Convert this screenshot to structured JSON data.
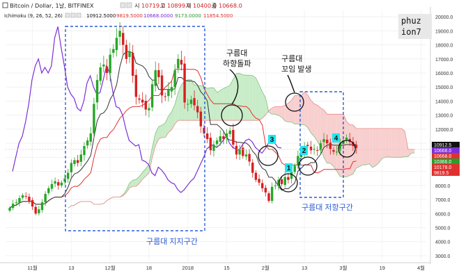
{
  "header": {
    "line1_title": "Bitcoin / Dollar, 1날, BITFINEX",
    "line1_prefix_o": "시",
    "line1_o": "10719.0",
    "line1_prefix_h": "고",
    "line1_h": "10899.0",
    "line1_prefix_l": "저",
    "line1_l": "10400.0",
    "line1_prefix_c": "종",
    "line1_c": "10668.0",
    "line2_name": "Ichimoku (9, 26, 52, 26)",
    "line2_values": [
      "10912.5000",
      "9819.5000",
      "10668.0000",
      "9173.0000",
      "11854.5000"
    ],
    "line2_colors": [
      "#111111",
      "#e03030",
      "#7b2fd6",
      "#2a9d2a",
      "#e03030"
    ]
  },
  "watermark": {
    "line1": "phuz",
    "line2": "ion7"
  },
  "annotations": {
    "cloud_break": [
      "구름대",
      "하향돌파"
    ],
    "cloud_twist": [
      "구름대",
      "꼬임  발생"
    ],
    "support_zone": "구름대  지지구간",
    "resistance_zone": "구름대  저항구간",
    "markers": [
      "1",
      "2",
      "3",
      "4"
    ]
  },
  "price_tags": [
    {
      "value": "10912.5",
      "bg": "#111111"
    },
    {
      "value": "10668.0",
      "bg": "#7b2fd6"
    },
    {
      "value": "10668.0",
      "bg": "#e03030"
    },
    {
      "value": "10366.0",
      "bg": "#2a9d2a"
    },
    {
      "value": "10178.0",
      "bg": "#e03030"
    },
    {
      "value": "9819.5",
      "bg": "#e03030"
    }
  ],
  "colors": {
    "up": "#26a626",
    "down": "#d62020",
    "tenkan": "#333333",
    "kijun": "#e03030",
    "chikou": "#7b2fd6",
    "kumo_bull": "#c8ecc8",
    "kumo_bear": "#f8cfcf",
    "annotation_blue": "#2a5ad6",
    "marker_cyan": "#22e5f0"
  },
  "chart_data": {
    "type": "candlestick",
    "title": "Bitcoin / Dollar, 1날, BITFINEX",
    "x_labels": [
      "11월",
      "13",
      "12월",
      "18",
      "2018",
      "15",
      "2월",
      "13",
      "3월",
      "19",
      "4월"
    ],
    "y_ticks": [
      "20000.0",
      "19000.0",
      "18000.0",
      "17000.0",
      "16000.0",
      "15000.0",
      "14000.0",
      "13000.0",
      "12000.0",
      "11000.0",
      "10000.0",
      "9000.0",
      "8000.0",
      "7000.0",
      "6000.0",
      "5000.0",
      "4000.0",
      "3000.0"
    ],
    "ylim": [
      2800,
      20500
    ],
    "series": [
      {
        "name": "price",
        "values": [
          6400,
          6700,
          6800,
          7100,
          7300,
          7200,
          6900,
          6500,
          6000,
          6300,
          6800,
          7400,
          7800,
          8100,
          8300,
          8000,
          8200,
          8500,
          8900,
          9600,
          9800,
          9600,
          10200,
          10800,
          11200,
          11700,
          13800,
          15500,
          16400,
          16600,
          16000,
          17300,
          17700,
          18500,
          19000,
          18000,
          17000,
          17500,
          15800,
          14300,
          14100,
          13900,
          13400,
          13500,
          15200,
          16200,
          15700,
          14400,
          14300,
          14800,
          15000,
          16200,
          17000,
          16600,
          13900,
          13800,
          14100,
          13700,
          13200,
          12200,
          11700,
          11300,
          10500,
          10900,
          11200,
          11500,
          11300,
          11700,
          11900,
          10900,
          10200,
          10600,
          10100,
          10200,
          9700,
          8900,
          8400,
          8200,
          7800,
          7500,
          6900,
          7900,
          8000,
          8400,
          8100,
          8600,
          8400,
          9000,
          9400,
          10100,
          10400,
          10800,
          10800,
          10500,
          10600,
          10500,
          11000,
          11300,
          11000,
          10600,
          10400,
          10400,
          11000,
          11200,
          11400,
          11100,
          10800,
          10668
        ]
      },
      {
        "name": "chikou",
        "values": [
          9000,
          10000,
          11000,
          11500,
          12500,
          13800,
          15500,
          16500,
          17000,
          16000,
          16400,
          16000,
          16500,
          18500,
          19300,
          17800,
          16500,
          15000,
          14500,
          14200,
          13500,
          13300,
          14000,
          15300,
          15800,
          15000,
          14500,
          14600,
          15500,
          16500,
          16000,
          14600,
          13600,
          13500,
          13000,
          12000,
          11200,
          11000,
          10800,
          10900,
          9800,
          9700,
          9500,
          8900,
          8700,
          9300,
          9100,
          8800,
          8400,
          8200,
          8100,
          7700,
          7500,
          7700,
          8000,
          8300,
          8500,
          9000,
          9500,
          10000,
          10600,
          10800,
          10900,
          10700,
          10900,
          11200,
          11500,
          11000,
          10700,
          10600,
          10500,
          10900,
          11200,
          11300,
          11100,
          10700,
          10500,
          10300,
          10600,
          11000,
          11100,
          11000,
          10700,
          10668
        ]
      }
    ]
  }
}
